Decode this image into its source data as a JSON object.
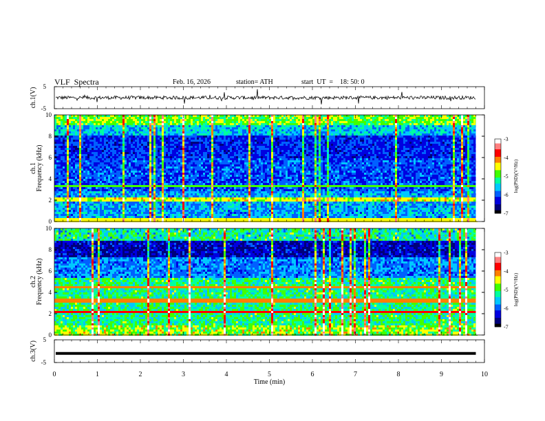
{
  "header": {
    "title": "VLF  Spectra",
    "date": "Feb. 16, 2026",
    "station": "station= ATH",
    "start_ut": "start  UT  =    18: 50: 0"
  },
  "chart_data": [
    {
      "type": "line",
      "id": "ch1_waveform",
      "ylabel": "ch.1(V)",
      "ylim": [
        -5,
        5
      ],
      "yticks": [
        "5",
        "-5"
      ],
      "xlim": [
        0,
        10
      ],
      "data_end_min": 9.8,
      "baseline": 0,
      "color": "#000000"
    },
    {
      "type": "heatmap",
      "id": "ch1_spectrogram",
      "ylabel": "Frequency (kHz)",
      "channel_label": "ch.1",
      "ylim": [
        0,
        10
      ],
      "yticks": [
        0,
        2,
        4,
        6,
        8,
        10
      ],
      "xlim": [
        0,
        10
      ],
      "data_end_min": 9.8,
      "colorbar": {
        "label": "log(PSD)(V²/Hz)",
        "range": [
          -7,
          -3
        ],
        "ticks": [
          "-3",
          "-4",
          "-5",
          "-6",
          "-7"
        ]
      }
    },
    {
      "type": "heatmap",
      "id": "ch2_spectrogram",
      "ylabel": "Frequency (kHz)",
      "channel_label": "ch.2",
      "ylim": [
        0,
        10
      ],
      "yticks": [
        0,
        2,
        4,
        6,
        8,
        10
      ],
      "xlim": [
        0,
        10
      ],
      "data_end_min": 9.8,
      "colorbar": {
        "label": "log(PSD)(V²/Hz)",
        "range": [
          -7,
          -3
        ],
        "ticks": [
          "-3",
          "-4",
          "-5",
          "-6",
          "-7"
        ]
      }
    },
    {
      "type": "line",
      "id": "ch3_waveform",
      "ylabel": "ch.3(V)",
      "ylim": [
        -5,
        5
      ],
      "yticks": [
        "5",
        "-5"
      ],
      "xlim": [
        0,
        10
      ],
      "data_end_min": 9.8,
      "baseline": -1,
      "color": "#000000"
    }
  ],
  "xaxis": {
    "label": "Time  (min)",
    "ticks": [
      "0",
      "1",
      "2",
      "3",
      "4",
      "5",
      "6",
      "7",
      "8",
      "9",
      "10"
    ]
  },
  "colormap": [
    "#000000",
    "#00007a",
    "#0000e0",
    "#0060ff",
    "#00c8ff",
    "#00ffa0",
    "#40ff00",
    "#ffff00",
    "#ff8000",
    "#ff0000",
    "#ff8080",
    "#ffffff"
  ]
}
